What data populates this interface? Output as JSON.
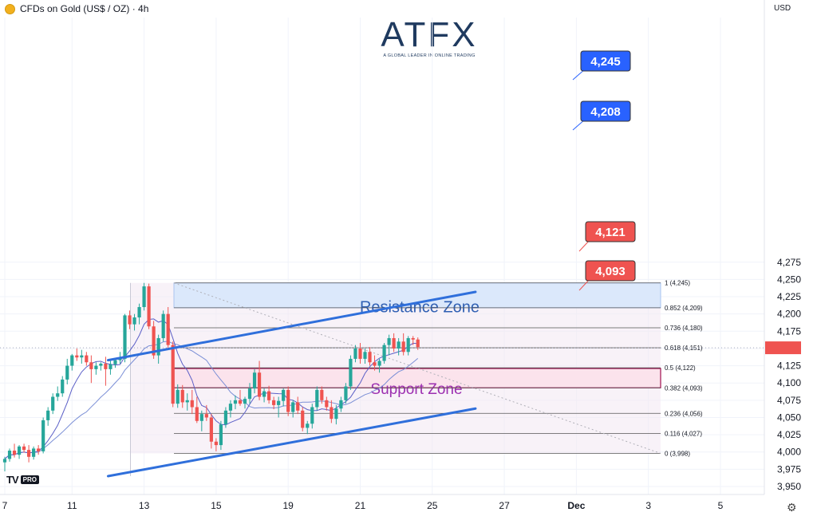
{
  "header": {
    "symbol_title": "CFDs on Gold (US$ / OZ) · 4h",
    "currency": "USD"
  },
  "logo": {
    "brand": "ATFX",
    "tagline": "A GLOBAL LEADER IN ONLINE TRADING"
  },
  "watermark": {
    "tv": "TV",
    "pro": "PRO"
  },
  "icons": {
    "settings": "gear-icon",
    "symbol": "gold-coin-icon"
  },
  "chart_data": {
    "type": "candlestick",
    "y_axis": {
      "ticks": [
        3950,
        3975,
        4000,
        4025,
        4050,
        4075,
        4100,
        4125,
        4150,
        4175,
        4200,
        4225,
        4250,
        4275
      ],
      "range": [
        3950,
        4285
      ],
      "side": "right"
    },
    "x_axis": {
      "ticks": [
        {
          "label": "7",
          "i": 0
        },
        {
          "label": "11",
          "i": 14
        },
        {
          "label": "13",
          "i": 29
        },
        {
          "label": "15",
          "i": 44
        },
        {
          "label": "19",
          "i": 59
        },
        {
          "label": "21",
          "i": 74
        },
        {
          "label": "25",
          "i": 89
        },
        {
          "label": "27",
          "i": 104
        },
        {
          "label": "Dec",
          "i": 119
        },
        {
          "label": "3",
          "i": 134
        },
        {
          "label": "5",
          "i": 149
        }
      ]
    },
    "colors": {
      "up": "#26a69a",
      "down": "#ef5350",
      "ma_fast": "#5b5fc7",
      "ma_slow": "#7b8fd6",
      "channel": "#2f6fdb",
      "resistance": "#2962ff",
      "support": "#a01050"
    },
    "ohlc": [
      [
        3985,
        3993,
        3972,
        3990
      ],
      [
        3990,
        4005,
        3986,
        4002
      ],
      [
        4002,
        4012,
        3992,
        3996
      ],
      [
        3996,
        4010,
        3990,
        4008
      ],
      [
        4008,
        4012,
        3999,
        4003
      ],
      [
        4003,
        4010,
        3985,
        3993
      ],
      [
        3993,
        4008,
        3989,
        4005
      ],
      [
        4005,
        4010,
        3996,
        4001
      ],
      [
        4001,
        4050,
        3998,
        4046
      ],
      [
        4046,
        4065,
        4038,
        4060
      ],
      [
        4060,
        4085,
        4055,
        4080
      ],
      [
        4080,
        4095,
        4074,
        4085
      ],
      [
        4085,
        4110,
        4080,
        4105
      ],
      [
        4105,
        4135,
        4098,
        4125
      ],
      [
        4125,
        4142,
        4118,
        4140
      ],
      [
        4140,
        4150,
        4132,
        4137
      ],
      [
        4137,
        4148,
        4128,
        4140
      ],
      [
        4140,
        4145,
        4125,
        4130
      ],
      [
        4130,
        4140,
        4100,
        4120
      ],
      [
        4120,
        4130,
        4112,
        4125
      ],
      [
        4125,
        4130,
        4118,
        4128
      ],
      [
        4128,
        4138,
        4096,
        4120
      ],
      [
        4120,
        4132,
        4112,
        4127
      ],
      [
        4127,
        4136,
        4122,
        4133
      ],
      [
        4133,
        4145,
        4128,
        4135
      ],
      [
        4135,
        4200,
        4130,
        4198
      ],
      [
        4198,
        4205,
        4178,
        4185
      ],
      [
        4185,
        4200,
        4176,
        4195
      ],
      [
        4195,
        4215,
        4185,
        4210
      ],
      [
        4210,
        4245,
        4205,
        4240
      ],
      [
        4240,
        4244,
        4178,
        4182
      ],
      [
        4182,
        4190,
        4135,
        4140
      ],
      [
        4140,
        4170,
        4128,
        4165
      ],
      [
        4165,
        4205,
        4160,
        4200
      ],
      [
        4200,
        4210,
        4150,
        4155
      ],
      [
        4155,
        4160,
        4065,
        4070
      ],
      [
        4070,
        4098,
        4064,
        4090
      ],
      [
        4090,
        4097,
        4064,
        4072
      ],
      [
        4072,
        4085,
        4060,
        4075
      ],
      [
        4075,
        4090,
        4055,
        4065
      ],
      [
        4065,
        4080,
        4042,
        4045
      ],
      [
        4045,
        4060,
        4030,
        4055
      ],
      [
        4055,
        4068,
        4045,
        4050
      ],
      [
        4050,
        4055,
        4005,
        4015
      ],
      [
        4015,
        4020,
        4001,
        4010
      ],
      [
        4010,
        4045,
        4003,
        4040
      ],
      [
        4040,
        4065,
        4035,
        4060
      ],
      [
        4060,
        4075,
        4050,
        4070
      ],
      [
        4070,
        4082,
        4062,
        4075
      ],
      [
        4075,
        4090,
        4067,
        4070
      ],
      [
        4070,
        4080,
        4063,
        4077
      ],
      [
        4077,
        4100,
        4070,
        4092
      ],
      [
        4092,
        4120,
        4085,
        4115
      ],
      [
        4115,
        4132,
        4075,
        4080
      ],
      [
        4080,
        4092,
        4072,
        4088
      ],
      [
        4088,
        4096,
        4070,
        4075
      ],
      [
        4075,
        4080,
        4062,
        4068
      ],
      [
        4068,
        4080,
        4050,
        4074
      ],
      [
        4074,
        4092,
        4066,
        4090
      ],
      [
        4090,
        4095,
        4052,
        4058
      ],
      [
        4058,
        4075,
        4050,
        4072
      ],
      [
        4072,
        4080,
        4055,
        4060
      ],
      [
        4060,
        4065,
        4030,
        4035
      ],
      [
        4035,
        4045,
        4026,
        4041
      ],
      [
        4041,
        4070,
        4034,
        4065
      ],
      [
        4065,
        4095,
        4060,
        4090
      ],
      [
        4090,
        4095,
        4070,
        4075
      ],
      [
        4075,
        4080,
        4060,
        4065
      ],
      [
        4065,
        4075,
        4042,
        4048
      ],
      [
        4048,
        4068,
        4040,
        4063
      ],
      [
        4063,
        4080,
        4058,
        4075
      ],
      [
        4075,
        4100,
        4070,
        4095
      ],
      [
        4095,
        4140,
        4090,
        4135
      ],
      [
        4135,
        4155,
        4130,
        4150
      ],
      [
        4150,
        4158,
        4128,
        4135
      ],
      [
        4135,
        4150,
        4128,
        4145
      ],
      [
        4145,
        4152,
        4125,
        4130
      ],
      [
        4130,
        4140,
        4118,
        4125
      ],
      [
        4125,
        4135,
        4115,
        4132
      ],
      [
        4132,
        4158,
        4128,
        4155
      ],
      [
        4155,
        4170,
        4140,
        4165
      ],
      [
        4165,
        4172,
        4145,
        4150
      ],
      [
        4150,
        4165,
        4140,
        4160
      ],
      [
        4160,
        4172,
        4140,
        4145
      ],
      [
        4145,
        4168,
        4140,
        4165
      ],
      [
        4165,
        4168,
        4155,
        4163
      ],
      [
        4163,
        4166,
        4148,
        4152
      ]
    ],
    "fibonacci": [
      {
        "level": 1,
        "price": 4245,
        "label": "1 (4,245)"
      },
      {
        "level": 0.852,
        "price": 4209,
        "label": "0.852 (4,209)"
      },
      {
        "level": 0.736,
        "price": 4180,
        "label": "0.736 (4,180)"
      },
      {
        "level": 0.618,
        "price": 4151,
        "label": "0.618 (4,151)"
      },
      {
        "level": 0.5,
        "price": 4122,
        "label": "0.5 (4,122)"
      },
      {
        "level": 0.382,
        "price": 4093,
        "label": "0.382 (4,093)"
      },
      {
        "level": 0.236,
        "price": 4056,
        "label": "0.236 (4,056)"
      },
      {
        "level": 0.116,
        "price": 4027,
        "label": "0.116 (4,027)"
      },
      {
        "level": 0,
        "price": 3998,
        "label": "0 (3,998)"
      }
    ],
    "zones": [
      {
        "name": "Resistance Zone",
        "top": 4245,
        "bottom": 4209
      },
      {
        "name": "Support Zone",
        "top": 4121,
        "bottom": 4093
      }
    ],
    "callouts": [
      {
        "text": "4,245",
        "price": 4245,
        "color": "#2962ff"
      },
      {
        "text": "4,208",
        "price": 4208,
        "color": "#2962ff"
      },
      {
        "text": "4,121",
        "price": 4121,
        "color": "#ef5350"
      },
      {
        "text": "4,093",
        "price": 4093,
        "color": "#ef5350"
      }
    ],
    "channel": {
      "upper": {
        "from": {
          "i": 21.5,
          "p": 4133
        },
        "to": {
          "i": 98,
          "p": 4232
        }
      },
      "lower": {
        "from": {
          "i": 21.5,
          "p": 3965
        },
        "to": {
          "i": 98,
          "p": 4063
        }
      }
    },
    "last_price": 4151
  }
}
